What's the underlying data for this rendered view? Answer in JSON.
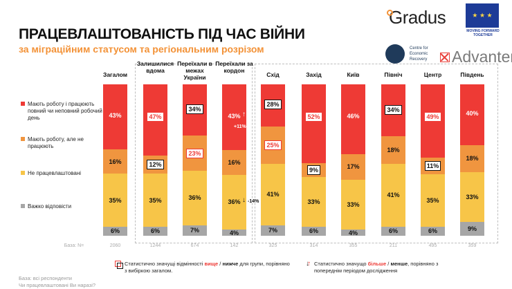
{
  "header": {
    "title": "ПРАЦЕВЛАШТОВАНІСТЬ ПІД ЧАС ВІЙНИ",
    "subtitle": "за міграційним статусом та регіональним розрізом"
  },
  "logos": {
    "gradus": "Gradus",
    "eu": "MOVING FORWARD TOGETHER",
    "cer": "Centre for Economic Recovery",
    "advanter": "Advanter"
  },
  "colors": {
    "employed": "#ee3a35",
    "employed_not_working": "#f0953f",
    "unemployed": "#f7c548",
    "hard_to_say": "#a6a6a6"
  },
  "chart_data": {
    "type": "bar",
    "stacked": true,
    "unit": "%",
    "legend": [
      "Мають роботу і працюють повний чи неповний робочий день",
      "Мають роботу, але не працюють",
      "Не працевлаштовані",
      "Важко відповісти"
    ],
    "categories": [
      "Загалом",
      "Залишилися вдома",
      "Переїхали в межах України",
      "Переїхали за кордон",
      "Схід",
      "Захід",
      "Київ",
      "Північ",
      "Центр",
      "Південь"
    ],
    "series": [
      {
        "name": "Мають роботу і працюють",
        "values": [
          43,
          47,
          34,
          43,
          28,
          52,
          46,
          34,
          49,
          40
        ],
        "sig": [
          "",
          "hi",
          "lo",
          "",
          "lo",
          "hi",
          "",
          "lo",
          "hi",
          ""
        ]
      },
      {
        "name": "Мають роботу, але не працюють",
        "values": [
          16,
          12,
          23,
          16,
          25,
          9,
          17,
          18,
          11,
          18
        ],
        "sig": [
          "",
          "lo",
          "hi",
          "",
          "hi",
          "lo",
          "",
          "",
          "lo",
          ""
        ]
      },
      {
        "name": "Не працевлаштовані",
        "values": [
          35,
          35,
          36,
          36,
          41,
          33,
          33,
          41,
          35,
          33
        ],
        "sig": [
          "",
          "",
          "",
          "",
          "",
          "",
          "",
          "",
          "",
          ""
        ]
      },
      {
        "name": "Важко відповісти",
        "values": [
          6,
          6,
          7,
          4,
          7,
          6,
          4,
          6,
          6,
          9
        ],
        "sig": [
          "",
          "",
          "",
          "",
          "",
          "",
          "",
          "",
          "",
          ""
        ]
      }
    ],
    "trends": [
      {
        "category": "Переїхали за кордон",
        "series": 0,
        "direction": "up",
        "label": "+11%"
      },
      {
        "category": "Переїхали за кордон",
        "series": 2,
        "direction": "down",
        "label": "-14%"
      }
    ],
    "base_label": "База: N=",
    "base": [
      "2060",
      "1244",
      "674",
      "142",
      "325",
      "314",
      "355",
      "211",
      "495",
      "359"
    ]
  },
  "notes": {
    "sig_group": "Статистично значущі відмінності вище / нижче для групи, порівняно з вибіркою загалом.",
    "sig_group_a": "Статистично значущі відмінності ",
    "sig_group_hi": "вище",
    "sig_group_b": " / ",
    "sig_group_lo": "нижче",
    "sig_group_c": " для групи, порівняно з вибіркою загалом.",
    "sig_period_a": "Статистично значущо ",
    "sig_period_hi": "більше",
    "sig_period_b": " / ",
    "sig_period_lo": "менше",
    "sig_period_c": ", порівняно з попереднім періодом дослідження"
  },
  "footer": {
    "base": "База: всі респонденти",
    "question": "Чи працевлаштовані Ви наразі?"
  }
}
